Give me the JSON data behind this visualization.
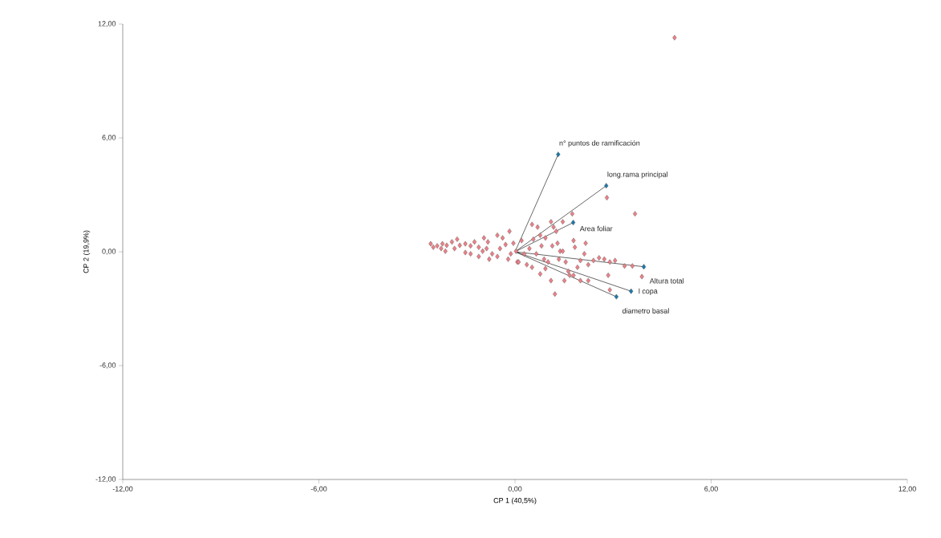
{
  "chart_data": {
    "type": "scatter",
    "xlabel": "CP 1 (40,5%)",
    "ylabel": "CP 2 (19,9%)",
    "xlim": [
      -12,
      12
    ],
    "ylim": [
      -12,
      12
    ],
    "xticks": [
      {
        "value": -12,
        "label": "-12,00"
      },
      {
        "value": -6,
        "label": "-6,00"
      },
      {
        "value": 0,
        "label": "0,00"
      },
      {
        "value": 6,
        "label": "6,00"
      },
      {
        "value": 12,
        "label": "12,00"
      }
    ],
    "yticks": [
      {
        "value": -12,
        "label": "-12,00"
      },
      {
        "value": -6,
        "label": "-6,00"
      },
      {
        "value": 0,
        "label": "0,00"
      },
      {
        "value": 6,
        "label": "6,00"
      },
      {
        "value": 12,
        "label": "12,00"
      }
    ],
    "grid": false,
    "series": [
      {
        "type": "scatter",
        "color": "#ee8088",
        "marker": "diamond",
        "x": [
          -2.58,
          -2.38,
          -2.22,
          -2.09,
          -1.93,
          -1.77,
          -1.69,
          -1.52,
          -2.13,
          -1.85,
          -1.52,
          -1.36,
          -1.24,
          -1.11,
          -0.99,
          -0.83,
          -0.87,
          -0.7,
          -0.54,
          -0.46,
          -0.38,
          -0.29,
          -0.17,
          -0.13,
          0.03,
          0.07,
          0.2,
          0.28,
          0.36,
          0.52,
          0.56,
          0.65,
          0.77,
          0.81,
          0.89,
          0.93,
          1.1,
          1.14,
          1.18,
          1.26,
          1.3,
          1.38,
          1.46,
          1.46,
          1.55,
          1.63,
          1.75,
          1.79,
          1.79,
          1.83,
          1.91,
          2.0,
          2.12,
          2.16,
          2.24,
          2.4,
          2.57,
          2.73,
          2.81,
          2.9,
          3.06,
          2.9,
          3.35,
          3.59,
          3.67,
          3.88,
          1.22,
          -0.79,
          -1.11,
          0.52,
          0.77,
          1.1,
          1.51,
          2.0,
          1.67,
          0.11,
          -0.54,
          -0.95,
          -1.36,
          -2.26,
          -2.5,
          2.24,
          2.85,
          -0.05,
          -0.21,
          0.44,
          1.01,
          1.34,
          0.93,
          0.69,
          4.88
        ],
        "values": [
          0.42,
          0.31,
          0.42,
          0.34,
          0.52,
          0.66,
          0.34,
          0.42,
          0.03,
          0.17,
          -0.04,
          0.31,
          0.52,
          0.24,
          0.03,
          0.52,
          0.17,
          -0.11,
          -0.25,
          0.17,
          0.73,
          0.38,
          1.08,
          -0.11,
          0.03,
          -0.54,
          0.59,
          -0.11,
          -0.68,
          1.44,
          0.66,
          -0.11,
          0.87,
          0.31,
          -0.39,
          -0.89,
          1.58,
          0.31,
          1.3,
          1.08,
          0.45,
          0.03,
          1.58,
          0.03,
          -0.54,
          -1.03,
          2.0,
          0.59,
          -1.24,
          0.24,
          -0.82,
          -0.46,
          -0.11,
          0.45,
          -0.68,
          -0.46,
          -0.32,
          -0.39,
          2.85,
          -0.54,
          -0.46,
          -2.01,
          -0.75,
          -0.75,
          2.0,
          -1.31,
          -2.23,
          -0.39,
          -0.25,
          -0.82,
          -1.17,
          -1.52,
          -1.52,
          -1.52,
          -1.24,
          -0.54,
          0.87,
          0.73,
          -0.11,
          0.17,
          0.24,
          -1.52,
          -1.24,
          0.45,
          -0.39,
          0.17,
          -0.54,
          -0.39,
          0.73,
          1.3,
          11.28
        ]
      },
      {
        "type": "line",
        "color": "#000000",
        "marker": "none",
        "x": [
          0,
          1.32
        ],
        "values": [
          0,
          5.13
        ]
      },
      {
        "type": "line",
        "color": "#000000",
        "marker": "none",
        "x": [
          0,
          2.79
        ],
        "values": [
          0,
          3.48
        ]
      },
      {
        "type": "line",
        "color": "#000000",
        "marker": "none",
        "x": [
          0,
          1.78
        ],
        "values": [
          0,
          1.54
        ]
      },
      {
        "type": "line",
        "color": "#000000",
        "marker": "none",
        "x": [
          0,
          3.94
        ],
        "values": [
          0,
          -0.79
        ]
      },
      {
        "type": "line",
        "color": "#000000",
        "marker": "none",
        "x": [
          0,
          3.1
        ],
        "values": [
          0,
          -2.37
        ]
      },
      {
        "type": "line",
        "color": "#000000",
        "marker": "none",
        "x": [
          0,
          3.55
        ],
        "values": [
          0,
          -2.08
        ]
      },
      {
        "type": "scatter",
        "color": "#1b79ac",
        "marker": "diamond",
        "x": [
          1.32,
          2.79,
          1.78,
          3.94,
          3.1,
          3.55
        ],
        "values": [
          5.13,
          3.48,
          1.54,
          -0.79,
          -2.37,
          -2.08
        ]
      }
    ],
    "annotations": [
      {
        "text": "n° puntos de ramificación",
        "x": 1.32,
        "y": 5.13
      },
      {
        "text": "long.rama principal",
        "x": 2.79,
        "y": 3.48
      },
      {
        "text": "Area foliar",
        "x": 1.78,
        "y": 1.54
      },
      {
        "text": "Altura total",
        "x": 3.94,
        "y": -0.79
      },
      {
        "text": "diametro basal",
        "x": 3.1,
        "y": -2.37
      },
      {
        "text": "l copa",
        "x": 3.55,
        "y": -2.08
      }
    ]
  }
}
